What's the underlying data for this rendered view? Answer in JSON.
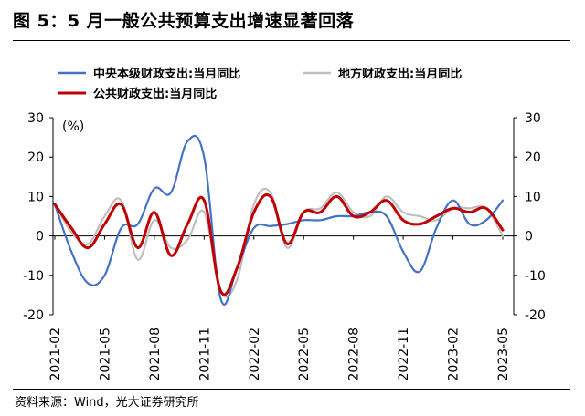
{
  "header": {
    "title": "图 5：5 月一般公共预算支出增速显著回落"
  },
  "footer": {
    "source": "资料来源：Wind，光大证券研究所"
  },
  "chart_data": {
    "type": "line",
    "unit_label": "(%)",
    "ylim": [
      -20,
      30
    ],
    "y_ticks": [
      30,
      20,
      10,
      0,
      -10,
      -20
    ],
    "y2_ticks": [
      30,
      20,
      10,
      0,
      -10,
      -20
    ],
    "x_tick_labels": [
      "2021-02",
      "2021-05",
      "2021-08",
      "2021-11",
      "2022-02",
      "2022-05",
      "2022-08",
      "2022-11",
      "2023-02",
      "2023-05"
    ],
    "x": [
      "2021-02",
      "2021-03",
      "2021-04",
      "2021-05",
      "2021-06",
      "2021-07",
      "2021-08",
      "2021-09",
      "2021-10",
      "2021-11",
      "2021-12",
      "2022-01",
      "2022-02",
      "2022-03",
      "2022-04",
      "2022-05",
      "2022-06",
      "2022-07",
      "2022-08",
      "2022-09",
      "2022-10",
      "2022-11",
      "2022-12",
      "2023-01",
      "2023-02",
      "2023-03",
      "2023-04",
      "2023-05"
    ],
    "grid": false,
    "legend_position": "top",
    "series": [
      {
        "name": "中央本级财政支出:当月同比",
        "color": "#4472c4",
        "values": [
          8,
          -4,
          -12,
          -10,
          2,
          3,
          12,
          11,
          24,
          20,
          -16,
          -8,
          2,
          2.5,
          3,
          4,
          4,
          5,
          5,
          6,
          5,
          -4,
          -9,
          2,
          9,
          3,
          4,
          9
        ]
      },
      {
        "name": "地方财政支出:当月同比",
        "color": "#bfbfbf",
        "values": [
          8,
          1,
          -2,
          5,
          9,
          -6,
          4,
          -3,
          -1,
          6,
          -14,
          -11,
          8,
          11,
          -3,
          6,
          7,
          11,
          6,
          5,
          10,
          6,
          5,
          4,
          7,
          7,
          7,
          0
        ]
      },
      {
        "name": "公共财政支出:当月同比",
        "color": "#c00000",
        "values": [
          8,
          2,
          -3,
          3,
          8,
          -3,
          6,
          -5,
          3,
          9,
          -14,
          -8,
          6,
          10,
          -2,
          6,
          6,
          10,
          5,
          6,
          9,
          4,
          3,
          5,
          7,
          6,
          7,
          1.5
        ]
      }
    ]
  }
}
